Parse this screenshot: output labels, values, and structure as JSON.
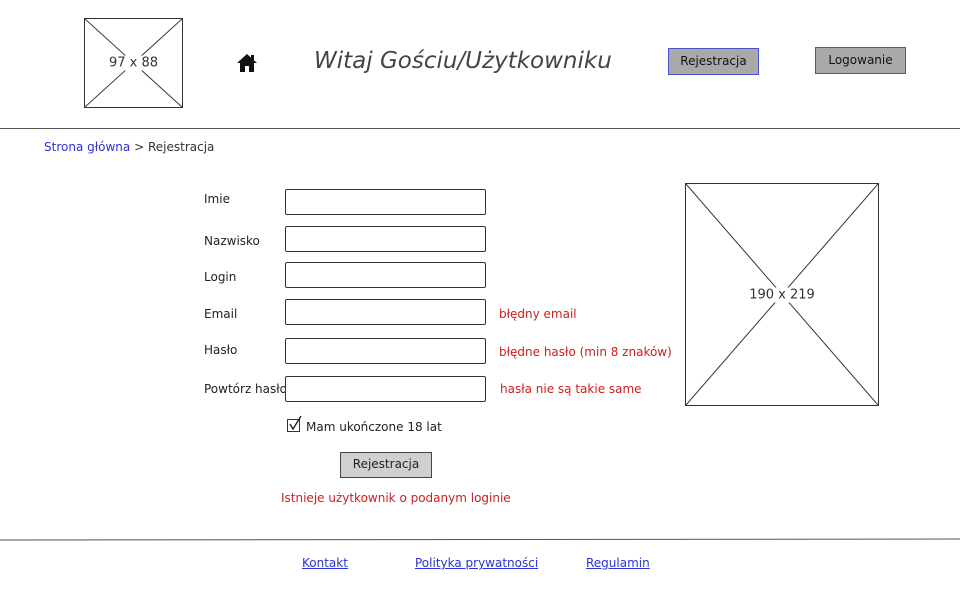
{
  "header": {
    "logo_dims": "97 x 88",
    "welcome": "Witaj Gościu/Użytkowniku",
    "register_label": "Rejestracja",
    "login_label": "Logowanie"
  },
  "breadcrumb": {
    "home": "Strona główna",
    "separator": ">",
    "current": "Rejestracja"
  },
  "form": {
    "fields": [
      {
        "label": "Imie",
        "value": "",
        "error": ""
      },
      {
        "label": "Nazwisko",
        "value": "",
        "error": ""
      },
      {
        "label": "Login",
        "value": "",
        "error": ""
      },
      {
        "label": "Email",
        "value": "",
        "error": "błędny email"
      },
      {
        "label": "Hasło",
        "value": "",
        "error": "błędne hasło (min 8 znaków)"
      },
      {
        "label": "Powtórz hasło",
        "value": "",
        "error": "hasła nie są takie same"
      }
    ],
    "agree_label": "Mam ukończone 18 lat",
    "agree_checked": true,
    "submit_label": "Rejestracja",
    "form_error": "Istnieje użytkownik o podanym loginie"
  },
  "side_image": {
    "dims": "190 x 219"
  },
  "footer": {
    "contact": "Kontakt",
    "privacy": "Polityka prywatności",
    "terms": "Regulamin"
  },
  "icons": {
    "home": "home-icon",
    "checkbox": "check-icon"
  },
  "colors": {
    "link": "#2b33d4",
    "error": "#cc1f1f",
    "header_button": "#a9a9a9",
    "header_button_border": "#4b52c8"
  }
}
